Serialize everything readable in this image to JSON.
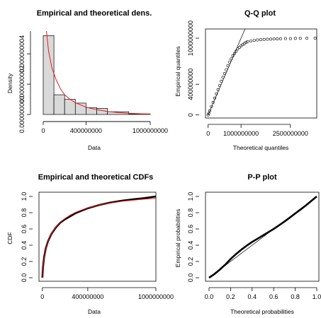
{
  "chart_data": [
    {
      "type": "bar",
      "title": "Empirical and theoretical dens.",
      "xlabel": "Data",
      "ylabel": "Density",
      "xlim": [
        0,
        1000000000
      ],
      "ylim": [
        0,
        5.5e-09
      ],
      "x_ticks": [
        0,
        400000000,
        1000000000
      ],
      "x_tick_labels": [
        "0",
        "400000000",
        "1000000000"
      ],
      "y_ticks": [
        0,
        2e-09,
        4e-09
      ],
      "y_tick_labels": [
        "0.000000000",
        "0.000000002",
        "0.000000004"
      ],
      "bins": [
        {
          "from": 0,
          "to": 100000000,
          "density": 5.2e-09
        },
        {
          "from": 100000000,
          "to": 200000000,
          "density": 1.3e-09
        },
        {
          "from": 200000000,
          "to": 300000000,
          "density": 1e-09
        },
        {
          "from": 300000000,
          "to": 400000000,
          "density": 7.5e-10
        },
        {
          "from": 400000000,
          "to": 500000000,
          "density": 4.5e-10
        },
        {
          "from": 500000000,
          "to": 600000000,
          "density": 4e-10
        },
        {
          "from": 600000000,
          "to": 800000000,
          "density": 1.8e-10
        },
        {
          "from": 800000000,
          "to": 1000000000,
          "density": 4e-11
        }
      ],
      "density_curve": {
        "color": "#e41a1c",
        "x": [
          30000000,
          50000000,
          80000000,
          120000000,
          160000000,
          200000000,
          250000000,
          300000000,
          400000000,
          500000000,
          600000000,
          700000000,
          800000000,
          900000000,
          1000000000
        ],
        "y": [
          5.5e-09,
          4.2e-09,
          3.1e-09,
          2.3e-09,
          1.7e-09,
          1.3e-09,
          1e-09,
          7.8e-10,
          4.8e-10,
          3.1e-10,
          2e-10,
          1.3e-10,
          8e-11,
          5e-11,
          3e-11
        ]
      }
    },
    {
      "type": "scatter",
      "title": "Q-Q plot",
      "xlabel": "Theoretical quantiles",
      "ylabel": "Empirical quantiles",
      "xlim": [
        -80000000,
        3300000000
      ],
      "ylim": [
        -40000000,
        1120000000
      ],
      "x_ticks": [
        0,
        1000000000,
        2500000000
      ],
      "x_tick_labels": [
        "0",
        "1000000000",
        "2500000000"
      ],
      "y_ticks": [
        0,
        400000000,
        1000000000
      ],
      "y_tick_labels": [
        "0",
        "400000000",
        "1000000000"
      ],
      "reference_line": {
        "slope": 1,
        "intercept": 0
      },
      "points": {
        "x": [
          0,
          20000000,
          50000000,
          100000000,
          150000000,
          200000000,
          250000000,
          300000000,
          350000000,
          400000000,
          450000000,
          500000000,
          550000000,
          600000000,
          650000000,
          700000000,
          750000000,
          800000000,
          850000000,
          900000000,
          950000000,
          1000000000,
          1050000000,
          1100000000,
          1150000000,
          1200000000,
          1300000000,
          1400000000,
          1500000000,
          1600000000,
          1700000000,
          1800000000,
          1900000000,
          2000000000,
          2100000000,
          2200000000,
          2350000000,
          2500000000,
          2650000000,
          2800000000,
          3000000000,
          3250000000
        ],
        "y": [
          0,
          20000000,
          55000000,
          110000000,
          165000000,
          220000000,
          275000000,
          330000000,
          385000000,
          440000000,
          490000000,
          540000000,
          590000000,
          640000000,
          690000000,
          730000000,
          770000000,
          800000000,
          830000000,
          860000000,
          880000000,
          900000000,
          915000000,
          930000000,
          945000000,
          955000000,
          965000000,
          972000000,
          977000000,
          981000000,
          984000000,
          986000000,
          988000000,
          990000000,
          991000000,
          992000000,
          994000000,
          995000000,
          997000000,
          998000000,
          999000000,
          1000000000
        ]
      }
    },
    {
      "type": "line",
      "title": "Empirical and theoretical CDFs",
      "xlabel": "Data",
      "ylabel": "CDF",
      "xlim": [
        -30000000,
        1000000000
      ],
      "ylim": [
        0,
        1
      ],
      "x_ticks": [
        0,
        400000000,
        1000000000
      ],
      "x_tick_labels": [
        "0",
        "400000000",
        "1000000000"
      ],
      "y_ticks": [
        0,
        0.2,
        0.4,
        0.6,
        0.8,
        1.0
      ],
      "y_tick_labels": [
        "0.0",
        "0.2",
        "0.4",
        "0.6",
        "0.8",
        "1.0"
      ],
      "empirical": {
        "x": [
          0,
          5000000,
          15000000,
          30000000,
          50000000,
          80000000,
          120000000,
          160000000,
          200000000,
          250000000,
          300000000,
          400000000,
          500000000,
          600000000,
          700000000,
          800000000,
          900000000,
          1000000000
        ],
        "y": [
          0.0,
          0.12,
          0.25,
          0.36,
          0.45,
          0.54,
          0.62,
          0.68,
          0.72,
          0.76,
          0.8,
          0.855,
          0.895,
          0.925,
          0.948,
          0.965,
          0.98,
          1.0
        ]
      },
      "theoretical": {
        "color": "#e41a1c",
        "x": [
          0,
          5000000,
          15000000,
          30000000,
          50000000,
          80000000,
          120000000,
          160000000,
          200000000,
          250000000,
          300000000,
          400000000,
          500000000,
          600000000,
          700000000,
          800000000,
          900000000,
          1000000000
        ],
        "y": [
          0.0,
          0.11,
          0.24,
          0.35,
          0.45,
          0.545,
          0.625,
          0.685,
          0.73,
          0.775,
          0.81,
          0.86,
          0.895,
          0.92,
          0.94,
          0.955,
          0.967,
          0.977
        ]
      }
    },
    {
      "type": "scatter",
      "title": "P-P plot",
      "xlabel": "Theoretical probabilities",
      "ylabel": "Empirical probabilities",
      "xlim": [
        0,
        1
      ],
      "ylim": [
        0,
        1
      ],
      "x_ticks": [
        0,
        0.2,
        0.4,
        0.6,
        0.8,
        1.0
      ],
      "x_tick_labels": [
        "0.0",
        "0.2",
        "0.4",
        "0.6",
        "0.8",
        "1.0"
      ],
      "y_ticks": [
        0,
        0.2,
        0.4,
        0.6,
        0.8,
        1.0
      ],
      "y_tick_labels": [
        "0.0",
        "0.2",
        "0.4",
        "0.6",
        "0.8",
        "1.0"
      ],
      "reference_line": {
        "slope": 1,
        "intercept": 0
      },
      "points": {
        "x": [
          0.0,
          0.05,
          0.1,
          0.15,
          0.2,
          0.25,
          0.3,
          0.35,
          0.4,
          0.45,
          0.5,
          0.55,
          0.6,
          0.65,
          0.7,
          0.75,
          0.8,
          0.85,
          0.9,
          0.95,
          1.0
        ],
        "y": [
          0.0,
          0.045,
          0.1,
          0.16,
          0.23,
          0.29,
          0.345,
          0.395,
          0.44,
          0.48,
          0.52,
          0.56,
          0.6,
          0.645,
          0.69,
          0.74,
          0.79,
          0.84,
          0.89,
          0.945,
          1.0
        ]
      }
    }
  ]
}
